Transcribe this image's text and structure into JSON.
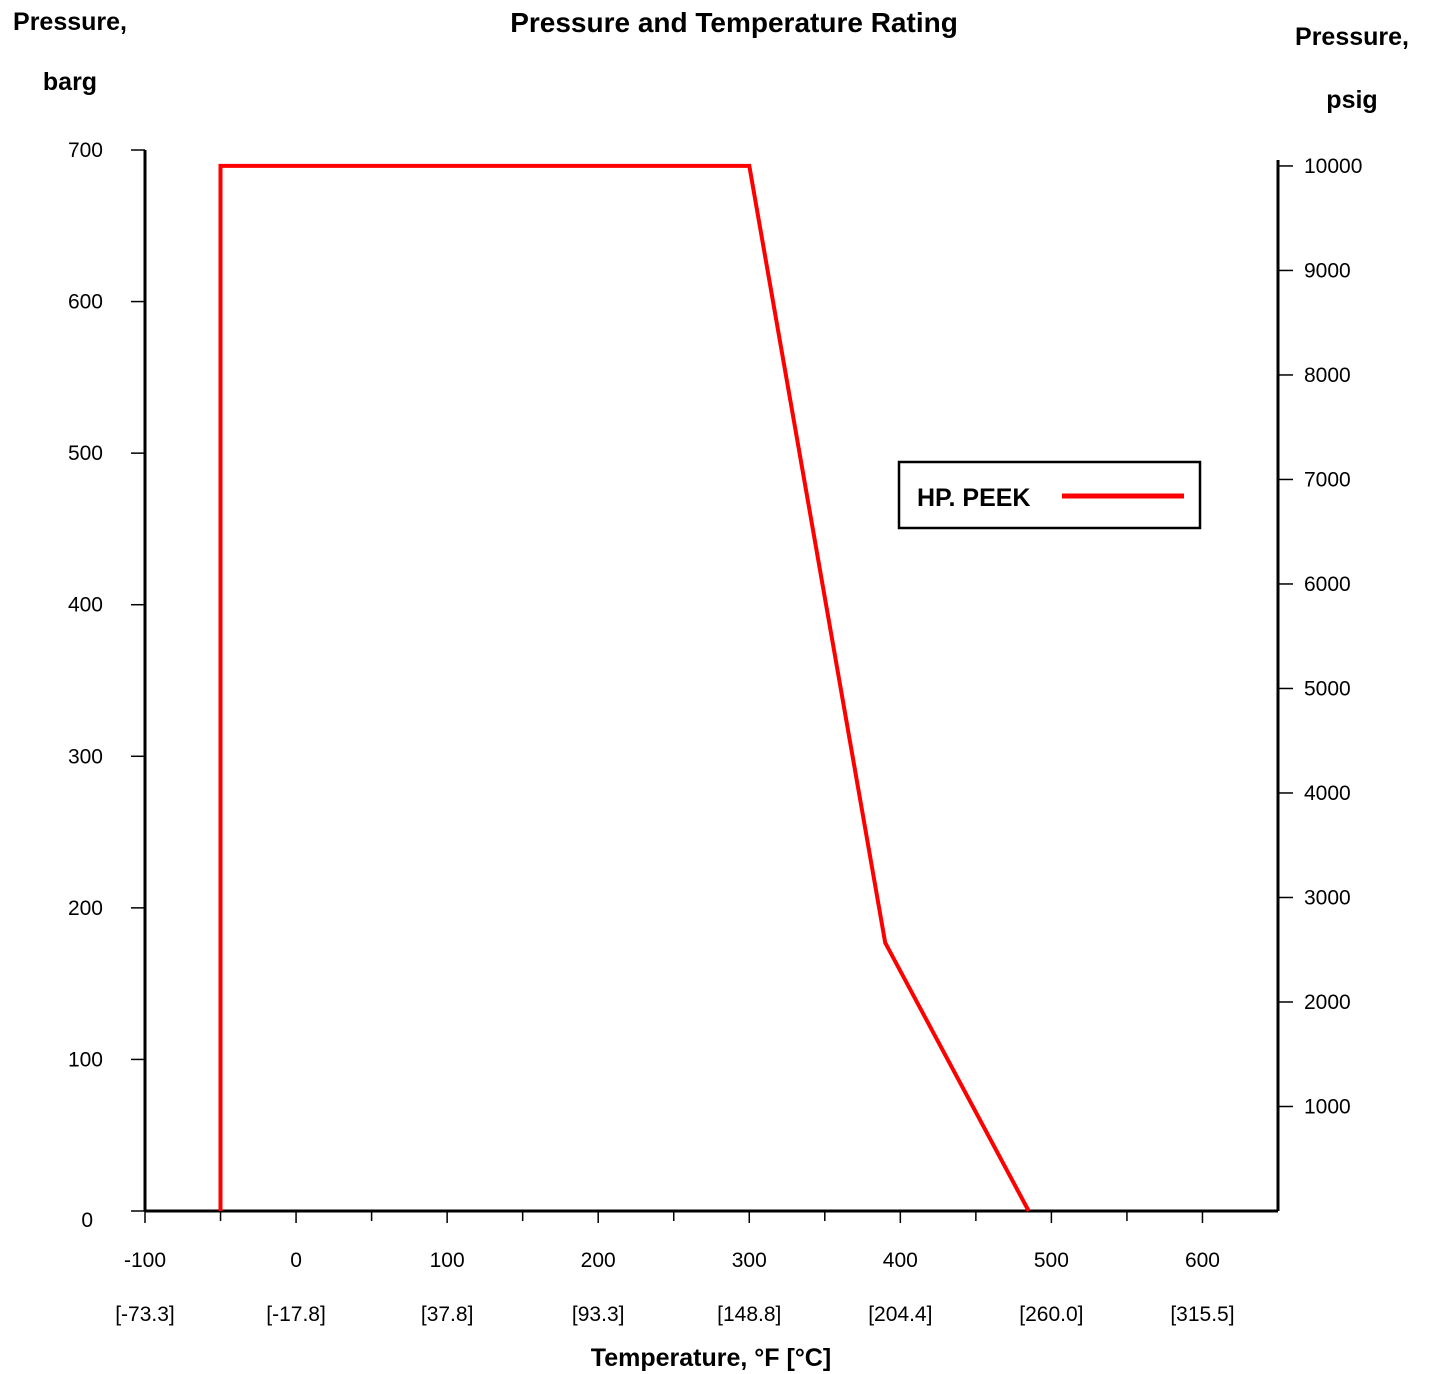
{
  "chart_data": {
    "type": "line",
    "title": "Pressure and Temperature Rating",
    "left_axis_title_lines": [
      "Pressure,",
      "barg"
    ],
    "right_axis_title_lines": [
      "Pressure,",
      "psig"
    ],
    "xlabel": "Temperature, °F [°C]",
    "xlim": [
      -100,
      650
    ],
    "ylim_left": [
      0,
      700
    ],
    "x_ticks": [
      -100,
      0,
      100,
      200,
      300,
      400,
      500,
      600
    ],
    "x_tick_labels": [
      "-100",
      "0",
      "100",
      "200",
      "300",
      "400",
      "500",
      "600"
    ],
    "x_tick_labels_secondary": [
      "[-73.3]",
      "[-17.8]",
      "[37.8]",
      "[93.3]",
      "[148.8]",
      "[204.4]",
      "[260.0]",
      "[315.5]"
    ],
    "y_left_ticks": [
      0,
      100,
      200,
      300,
      400,
      500,
      600,
      700
    ],
    "y_left_tick_labels": [
      "0",
      "100",
      "200",
      "300",
      "400",
      "500",
      "600",
      "700"
    ],
    "y_right_ticks": [
      1000,
      2000,
      3000,
      4000,
      5000,
      6000,
      7000,
      8000,
      9000,
      10000
    ],
    "y_right_tick_labels": [
      "1000",
      "2000",
      "3000",
      "4000",
      "5000",
      "6000",
      "7000",
      "8000",
      "9000",
      "10000"
    ],
    "y_right_to_left_factor": 0.0689476,
    "grid": false,
    "legend_position": "right-middle",
    "series": [
      {
        "name": "HP. PEEK",
        "color": "#ff0000",
        "x": [
          -50,
          -50,
          300,
          390,
          485
        ],
        "y": [
          0,
          689.5,
          689.5,
          177,
          0
        ]
      }
    ]
  }
}
